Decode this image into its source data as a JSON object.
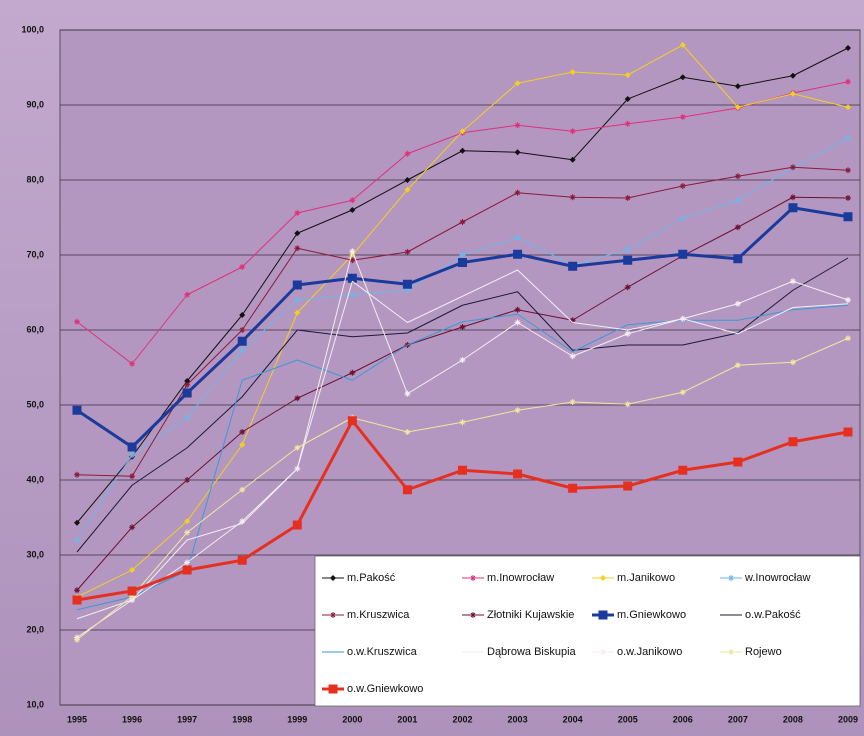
{
  "chart_data": {
    "type": "line",
    "x": [
      "1995",
      "1996",
      "1997",
      "1998",
      "1999",
      "2000",
      "2001",
      "2002",
      "2003",
      "2004",
      "2005",
      "2006",
      "2007",
      "2008",
      "2009"
    ],
    "ylim": [
      10,
      100
    ],
    "yticks": [
      {
        "value": 10,
        "label": "10,0"
      },
      {
        "value": 20,
        "label": "20,0"
      },
      {
        "value": 30,
        "label": "30,0"
      },
      {
        "value": 40,
        "label": "40,0"
      },
      {
        "value": 50,
        "label": "50,0"
      },
      {
        "value": 60,
        "label": "60,0"
      },
      {
        "value": 70,
        "label": "70,0"
      },
      {
        "value": 80,
        "label": "80,0"
      },
      {
        "value": 90,
        "label": "90,0"
      },
      {
        "value": 100,
        "label": "100,0"
      }
    ],
    "grid": true,
    "legend": "bottom-right",
    "series": [
      {
        "name": "m.Pakość",
        "color": "#111111",
        "line_width": 1,
        "marker": "diamond",
        "values": [
          34.3,
          43.1,
          53.2,
          62,
          72.9,
          76,
          80,
          83.9,
          83.7,
          82.7,
          90.8,
          93.7,
          92.5,
          93.9,
          97.6
        ]
      },
      {
        "name": "m.Inowrocław",
        "color": "#e0307a",
        "line_width": 1,
        "marker": "star",
        "values": [
          61.1,
          55.5,
          64.7,
          68.4,
          75.6,
          77.3,
          83.5,
          86.3,
          87.3,
          86.5,
          87.5,
          88.4,
          89.6,
          91.6,
          93.1
        ]
      },
      {
        "name": "m.Janikowo",
        "color": "#f2cf22",
        "line_width": 1,
        "marker": "diamond",
        "values": [
          24.4,
          28,
          34.5,
          44.7,
          62.3,
          70,
          78.7,
          86.5,
          92.9,
          94.4,
          94,
          98,
          89.7,
          91.5,
          89.7
        ]
      },
      {
        "name": "w.Inowrocław",
        "color": "#6fb6e8",
        "line_width": 1,
        "marker": "star",
        "values": [
          32,
          43.3,
          48.3,
          57.3,
          64,
          64.7,
          65.3,
          70,
          72.3,
          68.7,
          70.7,
          74.9,
          77.3,
          81.6,
          85.6
        ]
      },
      {
        "name": "m.Kruszwica",
        "color": "#8b1a3a",
        "line_width": 1,
        "marker": "star",
        "values": [
          40.7,
          40.5,
          52.7,
          60,
          70.9,
          69.3,
          70.4,
          74.4,
          78.3,
          77.7,
          77.6,
          79.2,
          80.5,
          81.7,
          81.3
        ]
      },
      {
        "name": "Złotniki Kujawskie",
        "color": "#6b1030",
        "line_width": 1,
        "marker": "star",
        "values": [
          25.3,
          33.7,
          40,
          46.4,
          50.9,
          54.3,
          58,
          60.4,
          62.7,
          61.3,
          65.7,
          69.9,
          73.7,
          77.7,
          77.6
        ]
      },
      {
        "name": "m.Gniewkowo",
        "color": "#1a3a9c",
        "line_width": 3,
        "marker": "square",
        "values": [
          49.3,
          44.4,
          51.6,
          58.5,
          66,
          66.9,
          66.1,
          69,
          70.1,
          68.5,
          69.3,
          70.1,
          69.5,
          76.3,
          75.1
        ]
      },
      {
        "name": "o.w.Pakość",
        "color": "#1a1a3a",
        "line_width": 1,
        "marker": "none",
        "values": [
          30.4,
          39.3,
          44.3,
          51.1,
          60,
          59.1,
          59.6,
          63.3,
          65.1,
          57.3,
          58,
          58,
          59.6,
          65.3,
          69.6
        ]
      },
      {
        "name": "o.w.Kruszwica",
        "color": "#3a9ad8",
        "line_width": 1,
        "marker": "none",
        "values": [
          22.7,
          24.4,
          27.9,
          53.3,
          56,
          53.3,
          58,
          61.1,
          62.1,
          57.1,
          60.7,
          61.3,
          61.3,
          62.7,
          63.3
        ]
      },
      {
        "name": "Dąbrowa Biskupia",
        "color": "#f0eef5",
        "line_width": 1,
        "marker": "none",
        "values": [
          21.5,
          24,
          32,
          34.2,
          41.5,
          66.5,
          61,
          64.5,
          68,
          61,
          60,
          61.5,
          59.5,
          63,
          63.5
        ]
      },
      {
        "name": "o.w.Janikowo",
        "color": "#f5eef0",
        "line_width": 1,
        "marker": "star",
        "values": [
          19,
          24,
          29,
          34.5,
          41.5,
          70.5,
          51.5,
          56,
          61,
          56.5,
          59.5,
          61.5,
          63.5,
          66.5,
          64
        ]
      },
      {
        "name": "Rojewo",
        "color": "#f3e6a0",
        "line_width": 1,
        "marker": "star",
        "values": [
          18.7,
          24.5,
          33,
          38.7,
          44.3,
          48.3,
          46.4,
          47.7,
          49.3,
          50.4,
          50.1,
          51.7,
          55.3,
          55.7,
          58.9
        ]
      },
      {
        "name": "o.w.Gniewkowo",
        "color": "#e53020",
        "line_width": 3,
        "marker": "square",
        "values": [
          24,
          25.2,
          28,
          29.3,
          34,
          47.9,
          38.7,
          41.3,
          40.8,
          38.9,
          39.2,
          41.3,
          42.4,
          45.1,
          46.4
        ]
      }
    ]
  }
}
